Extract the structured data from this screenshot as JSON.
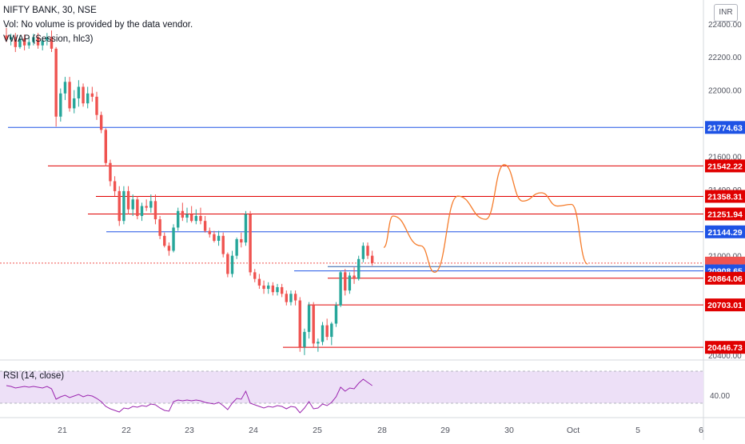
{
  "legend": {
    "symbol_line": "NIFTY BANK, 30, NSE",
    "volume_note": "Vol: No volume is provided by the data vendor.",
    "vwap": "VWAP (Session, hlc3)",
    "rsi": "RSI (14, close)"
  },
  "currency_badge": "INR",
  "colors": {
    "up": "#26a69a",
    "down": "#ef5350",
    "red_level": "#e00000",
    "blue_level": "#1e53e5",
    "projection": "#f57c2b",
    "rsi_line": "#9c27b0",
    "rsi_band": "#ede0f7"
  },
  "chart_data": {
    "type": "candlestick",
    "y_axis": {
      "range": [
        20380,
        22520
      ],
      "tick_labels": [
        "22400.00",
        "22200.00",
        "22000.00",
        "21600.00",
        "21400.00",
        "21000.00",
        "20400.00"
      ],
      "tick_values": [
        22400,
        22200,
        22000,
        21600,
        21400,
        21000,
        20400
      ]
    },
    "x_axis": {
      "tick_labels": [
        "21",
        "22",
        "23",
        "24",
        "25",
        "28",
        "29",
        "30",
        "Oct",
        "5",
        "6"
      ]
    },
    "price_levels": [
      {
        "label": "21774.63",
        "value": 21774.63,
        "style": "blue"
      },
      {
        "label": "21542.22",
        "value": 21542.22,
        "style": "red"
      },
      {
        "label": "21358.31",
        "value": 21358.31,
        "style": "red"
      },
      {
        "label": "21251.94",
        "value": 21251.94,
        "style": "red"
      },
      {
        "label": "21144.29",
        "value": 21144.29,
        "style": "blue"
      },
      {
        "label": "20955.43",
        "value": 20955.43,
        "style": "current"
      },
      {
        "label": "20934.25",
        "value": 20934.25,
        "style": "vwap"
      },
      {
        "label": "20908.65",
        "value": 20908.65,
        "style": "blue"
      },
      {
        "label": "20864.06",
        "value": 20864.06,
        "style": "red"
      },
      {
        "label": "20703.01",
        "value": 20703.01,
        "style": "red"
      },
      {
        "label": "20446.73",
        "value": 20446.73,
        "style": "red"
      }
    ],
    "candles": [
      [
        22330,
        22375,
        22290,
        22305
      ],
      [
        22305,
        22340,
        22270,
        22320
      ],
      [
        22320,
        22345,
        22230,
        22260
      ],
      [
        22260,
        22330,
        22250,
        22310
      ],
      [
        22310,
        22335,
        22240,
        22270
      ],
      [
        22270,
        22320,
        22250,
        22290
      ],
      [
        22290,
        22340,
        22270,
        22320
      ],
      [
        22320,
        22345,
        22250,
        22270
      ],
      [
        22270,
        22320,
        22240,
        22300
      ],
      [
        22300,
        22345,
        22270,
        22320
      ],
      [
        22320,
        22360,
        22230,
        22250
      ],
      [
        22250,
        22260,
        21780,
        21840
      ],
      [
        21840,
        22010,
        21810,
        21980
      ],
      [
        21980,
        22080,
        21940,
        22050
      ],
      [
        22050,
        22080,
        21870,
        21890
      ],
      [
        21890,
        22000,
        21860,
        21950
      ],
      [
        21950,
        22060,
        21900,
        22020
      ],
      [
        22020,
        22040,
        21900,
        21920
      ],
      [
        21920,
        22020,
        21890,
        21980
      ],
      [
        21980,
        22020,
        21930,
        21960
      ],
      [
        21960,
        21990,
        21820,
        21850
      ],
      [
        21850,
        21870,
        21740,
        21760
      ],
      [
        21760,
        21770,
        21540,
        21560
      ],
      [
        21560,
        21580,
        21420,
        21450
      ],
      [
        21450,
        21480,
        21360,
        21390
      ],
      [
        21390,
        21420,
        21180,
        21210
      ],
      [
        21210,
        21420,
        21190,
        21390
      ],
      [
        21390,
        21420,
        21250,
        21280
      ],
      [
        21280,
        21370,
        21240,
        21340
      ],
      [
        21340,
        21360,
        21220,
        21240
      ],
      [
        21240,
        21320,
        21210,
        21300
      ],
      [
        21300,
        21340,
        21270,
        21290
      ],
      [
        21290,
        21370,
        21260,
        21330
      ],
      [
        21330,
        21370,
        21190,
        21220
      ],
      [
        21220,
        21240,
        21100,
        21120
      ],
      [
        21120,
        21140,
        21050,
        21060
      ],
      [
        21060,
        21080,
        21000,
        21030
      ],
      [
        21030,
        21190,
        21020,
        21170
      ],
      [
        21170,
        21290,
        21150,
        21270
      ],
      [
        21270,
        21320,
        21210,
        21230
      ],
      [
        21230,
        21290,
        21200,
        21250
      ],
      [
        21250,
        21300,
        21200,
        21210
      ],
      [
        21210,
        21280,
        21190,
        21240
      ],
      [
        21240,
        21290,
        21190,
        21210
      ],
      [
        21210,
        21240,
        21140,
        21150
      ],
      [
        21150,
        21170,
        21110,
        21130
      ],
      [
        21130,
        21150,
        21080,
        21090
      ],
      [
        21090,
        21150,
        21060,
        21120
      ],
      [
        21120,
        21140,
        20990,
        21010
      ],
      [
        21010,
        21020,
        20870,
        20890
      ],
      [
        20890,
        21030,
        20870,
        21000
      ],
      [
        21000,
        21110,
        20980,
        21100
      ],
      [
        21100,
        21140,
        21050,
        21080
      ],
      [
        21080,
        21270,
        21060,
        21250
      ],
      [
        21250,
        21270,
        20880,
        20900
      ],
      [
        20900,
        20920,
        20840,
        20860
      ],
      [
        20860,
        20890,
        20800,
        20820
      ],
      [
        20820,
        20850,
        20770,
        20800
      ],
      [
        20800,
        20840,
        20770,
        20820
      ],
      [
        20820,
        20840,
        20760,
        20780
      ],
      [
        20780,
        20830,
        20760,
        20810
      ],
      [
        20810,
        20830,
        20750,
        20770
      ],
      [
        20770,
        20790,
        20700,
        20720
      ],
      [
        20720,
        20790,
        20700,
        20770
      ],
      [
        20770,
        20790,
        20700,
        20730
      ],
      [
        20730,
        20750,
        20420,
        20450
      ],
      [
        20450,
        20560,
        20400,
        20540
      ],
      [
        20540,
        20720,
        20500,
        20700
      ],
      [
        20700,
        20720,
        20450,
        20470
      ],
      [
        20470,
        20500,
        20420,
        20480
      ],
      [
        20480,
        20600,
        20460,
        20580
      ],
      [
        20580,
        20620,
        20490,
        20510
      ],
      [
        20510,
        20600,
        20460,
        20590
      ],
      [
        20590,
        20720,
        20570,
        20700
      ],
      [
        20700,
        20910,
        20690,
        20900
      ],
      [
        20900,
        20920,
        20760,
        20790
      ],
      [
        20790,
        20900,
        20770,
        20880
      ],
      [
        20880,
        20930,
        20830,
        20860
      ],
      [
        20860,
        21000,
        20850,
        20980
      ],
      [
        20980,
        21080,
        20960,
        21060
      ],
      [
        21060,
        21080,
        20980,
        21000
      ],
      [
        21000,
        21030,
        20940,
        20955
      ]
    ],
    "projection": [
      [
        21050,
        0
      ],
      [
        21240,
        8
      ],
      [
        21060,
        32
      ],
      [
        20900,
        44
      ],
      [
        21360,
        64
      ],
      [
        21220,
        88
      ],
      [
        21550,
        104
      ],
      [
        21330,
        120
      ],
      [
        21380,
        136
      ],
      [
        21300,
        150
      ],
      [
        21310,
        162
      ],
      [
        20950,
        176
      ]
    ],
    "rsi": {
      "tick_labels": [
        "40.00"
      ],
      "values": [
        52,
        51,
        49,
        50,
        51,
        50,
        51,
        50,
        49,
        51,
        48,
        35,
        38,
        40,
        37,
        39,
        41,
        38,
        40,
        39,
        36,
        32,
        26,
        23,
        21,
        19,
        24,
        23,
        26,
        25,
        27,
        26,
        29,
        28,
        24,
        21,
        20,
        32,
        34,
        33,
        34,
        33,
        34,
        33,
        31,
        30,
        29,
        31,
        27,
        22,
        30,
        36,
        35,
        45,
        30,
        28,
        26,
        24,
        26,
        25,
        27,
        26,
        23,
        26,
        25,
        18,
        24,
        32,
        23,
        24,
        29,
        27,
        31,
        38,
        50,
        45,
        49,
        48,
        55,
        60,
        56,
        52
      ]
    }
  }
}
